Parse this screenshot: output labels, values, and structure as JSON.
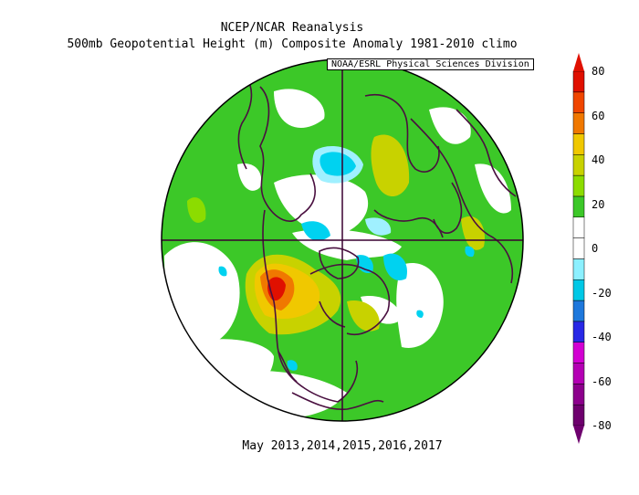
{
  "header": {
    "line1": "NCEP/NCAR Reanalysis",
    "line2": "500mb Geopotential Height (m) Composite Anomaly 1981-2010 climo"
  },
  "credit": "NOAA/ESRL Physical Sciences Division",
  "footer": "May 2013,2014,2015,2016,2017",
  "colorbar": {
    "levels": [
      {
        "value": 80,
        "label": "80",
        "color": "#e01000"
      },
      {
        "value": 60,
        "label": "60",
        "color": "#f07800"
      },
      {
        "value": 40,
        "label": "40",
        "color": "#c8d200"
      },
      {
        "value": 20,
        "label": "20",
        "color": "#3cc828"
      },
      {
        "value": 0,
        "label": "0",
        "color": "#ffffff"
      },
      {
        "value": -20,
        "label": "-20",
        "color": "#00c8e6"
      },
      {
        "value": -40,
        "label": "-40",
        "color": "#2828e6"
      },
      {
        "value": -60,
        "label": "-60",
        "color": "#b400b4"
      },
      {
        "value": -80,
        "label": "-80",
        "color": "#6e006e"
      }
    ],
    "segment_colors": [
      "#6e006e",
      "#8c008c",
      "#b400b4",
      "#d200d2",
      "#2828e6",
      "#1e78dc",
      "#00c8e6",
      "#8cf0ff",
      "#ffffff",
      "#ffffff",
      "#3cc828",
      "#8cdc00",
      "#c8d200",
      "#f0c800",
      "#f07800",
      "#f04600",
      "#e01000"
    ]
  },
  "colors": {
    "land_outline": "#4a1040",
    "positive_weak": "#3cc828",
    "positive_mid": "#c8d200",
    "positive_strong": "#f07800",
    "positive_max": "#e01000",
    "negative_weak": "#00d2f0",
    "negative_light": "#a0f0ff"
  }
}
